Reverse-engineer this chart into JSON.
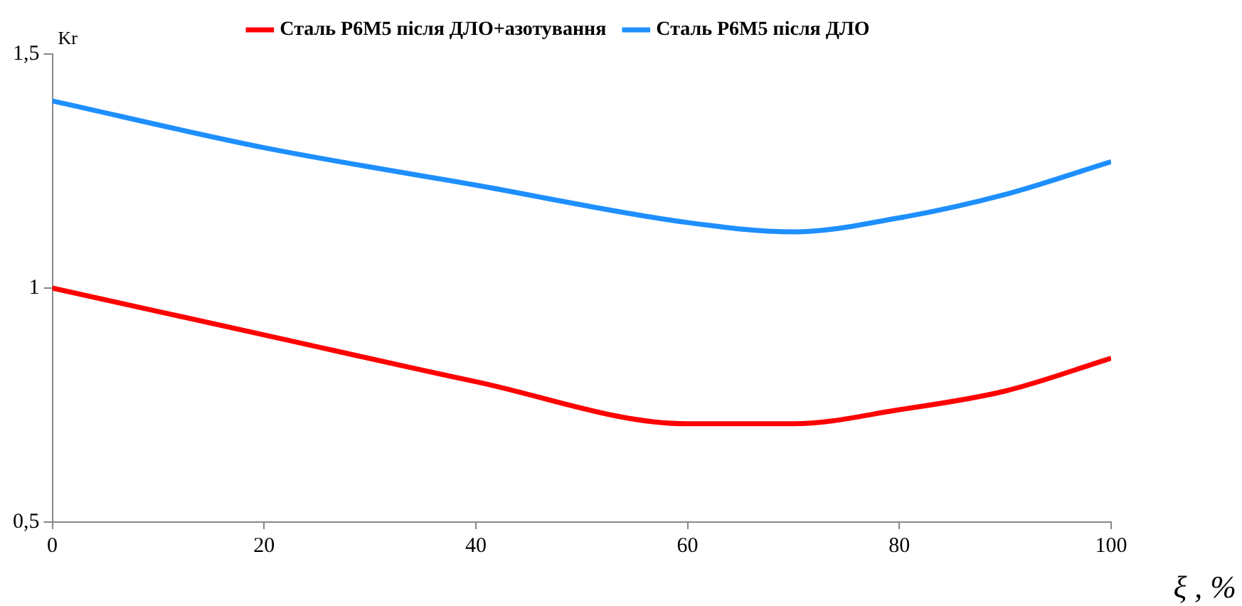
{
  "chart_data": {
    "type": "line",
    "xlabel": "ξ , %",
    "ylabel": "Kr",
    "x": [
      0,
      20,
      40,
      60,
      70,
      80,
      90,
      100
    ],
    "series": [
      {
        "name": "Сталь Р6М5 після ДЛО+азотування",
        "color": "#ff0000",
        "values": [
          1.0,
          0.9,
          0.8,
          0.71,
          0.71,
          0.74,
          0.78,
          0.85
        ]
      },
      {
        "name": "Сталь Р6М5 після ДЛО",
        "color": "#1e8fff",
        "values": [
          1.4,
          1.3,
          1.22,
          1.14,
          1.12,
          1.15,
          1.2,
          1.27
        ]
      }
    ],
    "xlim": [
      0,
      100
    ],
    "xticks": [
      0,
      20,
      40,
      60,
      80,
      100
    ],
    "ylim": [
      0.5,
      1.5
    ],
    "yticks": [
      {
        "value": 0.5,
        "label": "0,5"
      },
      {
        "value": 1,
        "label": "1"
      },
      {
        "value": 1.5,
        "label": "1,5"
      }
    ],
    "grid": false,
    "legend": "top",
    "marker": "none",
    "line_style": "solid"
  }
}
